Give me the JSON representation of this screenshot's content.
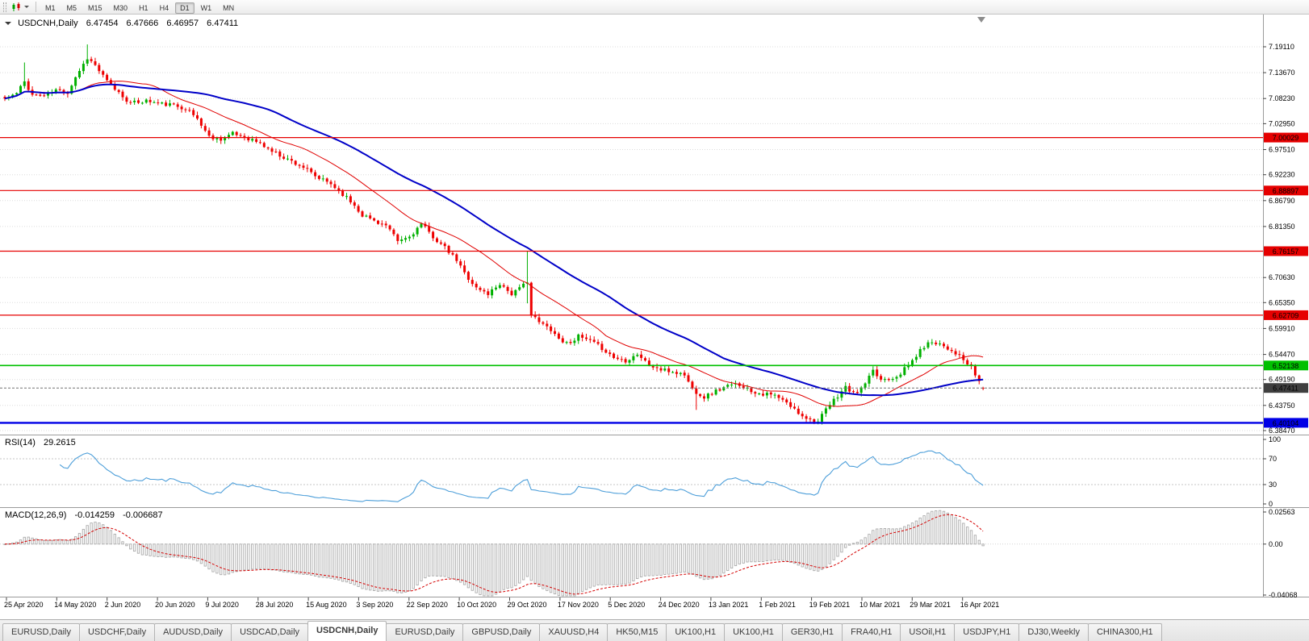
{
  "palette": {
    "candle_up": "#00B000",
    "candle_down": "#EE0000",
    "ma_fast": "#E00000",
    "ma_slow": "#0000C8",
    "line_red": "#E60000",
    "line_green": "#00C000",
    "line_blue": "#0000E6",
    "price_line": "#707070",
    "price_badge": "#3F3F3F",
    "rsi_line": "#4C9ED9",
    "macd_hist": "#ABABAB",
    "macd_signal": "#D40000",
    "grid": "#DCDCDC",
    "frame": "#9B9B9B"
  },
  "toolbar": {
    "timeframes": [
      "M1",
      "M5",
      "M15",
      "M30",
      "H1",
      "H4",
      "D1",
      "W1",
      "MN"
    ],
    "active_timeframe": "D1"
  },
  "chart": {
    "symbol_header": "USDCNH,Daily",
    "ohlc": {
      "open": "6.47454",
      "high": "6.47666",
      "low": "6.46957",
      "close": "6.47411"
    },
    "price_axis_ticks": [
      "7.19110",
      "7.13670",
      "7.08230",
      "7.02950",
      "6.97510",
      "6.92230",
      "6.86790",
      "6.81350",
      "6.70630",
      "6.65350",
      "6.59910",
      "6.54470",
      "6.49190",
      "6.43750",
      "6.38470"
    ],
    "hlines": [
      {
        "label": "7.00029",
        "value": 7.00029,
        "color_key": "line_red",
        "width": 1.2
      },
      {
        "label": "6.88897",
        "value": 6.88897,
        "color_key": "line_red",
        "width": 1.2
      },
      {
        "label": "6.76157",
        "value": 6.76157,
        "color_key": "line_red",
        "width": 1.2
      },
      {
        "label": "6.62709",
        "value": 6.62709,
        "color_key": "line_red",
        "width": 1.2
      },
      {
        "label": "6.52138",
        "value": 6.52138,
        "color_key": "line_green",
        "width": 1.6
      },
      {
        "label": "6.40104",
        "value": 6.40104,
        "color_key": "line_blue",
        "width": 2.4
      }
    ],
    "current_price": {
      "label": "6.47411",
      "value": 6.47411
    }
  },
  "rsi": {
    "name": "RSI(14)",
    "value": "29.2615",
    "axis_labels": [
      "100",
      "70",
      "30",
      "0"
    ],
    "dashed_levels": [
      70,
      30
    ]
  },
  "macd": {
    "name": "MACD(12,26,9)",
    "main_value": "-0.014259",
    "signal_value": "-0.006687",
    "axis_labels": [
      {
        "label": "0.02563",
        "value": 0.02563
      },
      {
        "label": "0.00",
        "value": 0
      },
      {
        "label": "-0.04068",
        "value": -0.04068
      }
    ]
  },
  "time_axis": [
    "25 Apr 2020",
    "14 May 2020",
    "2 Jun 2020",
    "20 Jun 2020",
    "9 Jul 2020",
    "28 Jul 2020",
    "15 Aug 2020",
    "3 Sep 2020",
    "22 Sep 2020",
    "10 Oct 2020",
    "29 Oct 2020",
    "17 Nov 2020",
    "5 Dec 2020",
    "24 Dec 2020",
    "13 Jan 2021",
    "1 Feb 2021",
    "19 Feb 2021",
    "10 Mar 2021",
    "29 Mar 2021",
    "16 Apr 2021"
  ],
  "tabs": {
    "active_index": 4,
    "items": [
      "EURUSD,Daily",
      "USDCHF,Daily",
      "AUDUSD,Daily",
      "USDCAD,Daily",
      "USDCNH,Daily",
      "EURUSD,Daily",
      "GBPUSD,Daily",
      "XAUUSD,H4",
      "HK50,M15",
      "UK100,H1",
      "UK100,H1",
      "GER30,H1",
      "FRA40,H1",
      "USOil,H1",
      "USDJPY,H1",
      "DJ30,Weekly",
      "CHINA300,H1"
    ]
  },
  "chart_data": {
    "type": "candlestick",
    "symbol": "USDCNH",
    "timeframe": "Daily",
    "x_range": [
      "25 Apr 2020",
      "21 Apr 2021"
    ],
    "visible_price_range": [
      6.3847,
      7.1911
    ],
    "num_candles": 250,
    "seed": 11,
    "close_keypoints": [
      [
        0,
        7.082
      ],
      [
        3,
        7.093
      ],
      [
        5,
        7.118
      ],
      [
        7,
        7.09
      ],
      [
        10,
        7.088
      ],
      [
        13,
        7.1
      ],
      [
        16,
        7.095
      ],
      [
        18,
        7.128
      ],
      [
        21,
        7.168
      ],
      [
        23,
        7.152
      ],
      [
        26,
        7.118
      ],
      [
        29,
        7.095
      ],
      [
        32,
        7.072
      ],
      [
        36,
        7.078
      ],
      [
        39,
        7.072
      ],
      [
        43,
        7.068
      ],
      [
        46,
        7.062
      ],
      [
        49,
        7.04
      ],
      [
        52,
        7.002
      ],
      [
        55,
        6.998
      ],
      [
        58,
        7.008
      ],
      [
        61,
        7.002
      ],
      [
        64,
        6.992
      ],
      [
        68,
        6.972
      ],
      [
        72,
        6.955
      ],
      [
        76,
        6.938
      ],
      [
        79,
        6.918
      ],
      [
        83,
        6.903
      ],
      [
        86,
        6.882
      ],
      [
        89,
        6.858
      ],
      [
        91,
        6.838
      ],
      [
        94,
        6.826
      ],
      [
        97,
        6.815
      ],
      [
        100,
        6.782
      ],
      [
        103,
        6.792
      ],
      [
        106,
        6.818
      ],
      [
        109,
        6.792
      ],
      [
        112,
        6.768
      ],
      [
        115,
        6.742
      ],
      [
        117,
        6.716
      ],
      [
        120,
        6.684
      ],
      [
        123,
        6.672
      ],
      [
        126,
        6.694
      ],
      [
        129,
        6.672
      ],
      [
        131,
        6.682
      ],
      [
        133,
        6.7
      ],
      [
        134,
        6.628
      ],
      [
        136,
        6.612
      ],
      [
        139,
        6.598
      ],
      [
        141,
        6.578
      ],
      [
        143,
        6.568
      ],
      [
        146,
        6.582
      ],
      [
        149,
        6.572
      ],
      [
        152,
        6.558
      ],
      [
        155,
        6.538
      ],
      [
        158,
        6.532
      ],
      [
        161,
        6.546
      ],
      [
        164,
        6.522
      ],
      [
        167,
        6.512
      ],
      [
        170,
        6.508
      ],
      [
        173,
        6.502
      ],
      [
        175,
        6.472
      ],
      [
        178,
        6.455
      ],
      [
        181,
        6.468
      ],
      [
        184,
        6.478
      ],
      [
        187,
        6.482
      ],
      [
        190,
        6.468
      ],
      [
        193,
        6.462
      ],
      [
        196,
        6.458
      ],
      [
        199,
        6.442
      ],
      [
        202,
        6.422
      ],
      [
        205,
        6.408
      ],
      [
        207,
        6.403
      ],
      [
        209,
        6.428
      ],
      [
        212,
        6.458
      ],
      [
        214,
        6.476
      ],
      [
        216,
        6.462
      ],
      [
        218,
        6.472
      ],
      [
        221,
        6.508
      ],
      [
        223,
        6.492
      ],
      [
        226,
        6.496
      ],
      [
        228,
        6.506
      ],
      [
        230,
        6.522
      ],
      [
        232,
        6.542
      ],
      [
        234,
        6.562
      ],
      [
        236,
        6.572
      ],
      [
        238,
        6.568
      ],
      [
        240,
        6.558
      ],
      [
        242,
        6.548
      ],
      [
        244,
        6.532
      ],
      [
        246,
        6.516
      ],
      [
        248,
        6.488
      ],
      [
        249,
        6.474
      ]
    ],
    "spikes": [
      {
        "i": 5,
        "high": 7.158
      },
      {
        "i": 21,
        "high": 7.196
      },
      {
        "i": 117,
        "high": 6.742
      },
      {
        "i": 133,
        "high": 6.761,
        "low": 6.652
      },
      {
        "i": 176,
        "low": 6.428
      },
      {
        "i": 206,
        "low": 6.398
      }
    ],
    "last_candle": {
      "open": 6.47454,
      "high": 6.47666,
      "low": 6.46957,
      "close": 6.47411
    },
    "moving_averages": [
      {
        "name": "MA fast",
        "period": 20,
        "color_key": "ma_fast",
        "width": 1
      },
      {
        "name": "MA slow",
        "period": 50,
        "color_key": "ma_slow",
        "width": 2
      }
    ],
    "support_resistance": [
      7.00029,
      6.88897,
      6.76157,
      6.62709,
      6.52138,
      6.40104
    ],
    "indicators": [
      {
        "type": "rsi",
        "period": 14,
        "last_value": 29.2615,
        "levels": [
          70,
          30
        ]
      },
      {
        "type": "macd",
        "fast": 12,
        "slow": 26,
        "signal": 9,
        "last_values": [
          -0.014259,
          -0.006687
        ]
      }
    ]
  }
}
